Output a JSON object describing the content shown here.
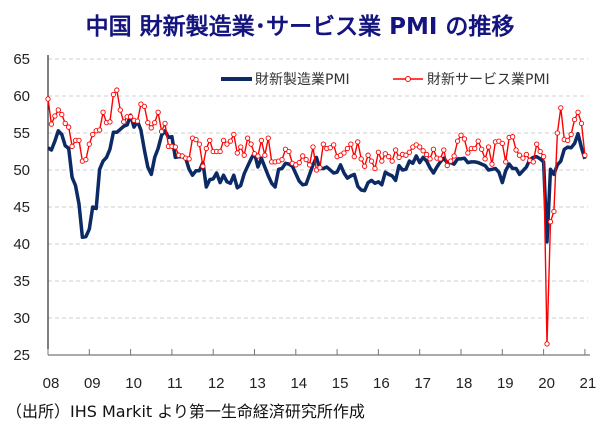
{
  "chart_data": {
    "type": "line",
    "title": "中国  財新製造業･サービス業 PMI の推移",
    "source": "（出所）IHS Markit より第一生命経済研究所作成",
    "xlabel": "",
    "ylabel": "",
    "x_start": "2008-01",
    "x_frequency": "monthly",
    "x_tick_labels": [
      "08",
      "09",
      "10",
      "11",
      "12",
      "13",
      "14",
      "15",
      "16",
      "17",
      "18",
      "19",
      "20",
      "21"
    ],
    "ylim": [
      25,
      65
    ],
    "y_ticks": [
      25,
      30,
      35,
      40,
      45,
      50,
      55,
      60,
      65
    ],
    "grid": "horizontal dashed",
    "legend": "top-right",
    "series": [
      {
        "name": "財新製造業PMI",
        "color": "#0b2a66",
        "marker": "none",
        "values": [
          53.0,
          52.7,
          53.9,
          55.3,
          54.8,
          53.3,
          52.9,
          49.0,
          47.9,
          45.4,
          40.9,
          41.0,
          42.0,
          45.0,
          44.8,
          50.1,
          51.2,
          51.7,
          52.8,
          55.1,
          55.1,
          55.5,
          55.9,
          56.1,
          57.4,
          55.8,
          56.6,
          55.4,
          52.7,
          50.4,
          49.4,
          51.7,
          52.9,
          54.7,
          55.3,
          54.4,
          54.5,
          51.7,
          51.8,
          51.8,
          51.6,
          50.1,
          49.3,
          49.9,
          49.9,
          51.0,
          47.7,
          48.7,
          48.8,
          49.6,
          48.3,
          49.3,
          48.4,
          48.2,
          49.3,
          47.6,
          47.9,
          49.5,
          50.5,
          51.5,
          52.3,
          50.4,
          51.6,
          50.4,
          49.2,
          48.2,
          47.7,
          50.1,
          50.2,
          50.9,
          50.8,
          50.5,
          49.5,
          48.5,
          48.0,
          48.1,
          49.4,
          50.7,
          51.7,
          50.2,
          50.2,
          50.4,
          50.0,
          49.6,
          49.7,
          50.7,
          49.6,
          48.9,
          49.2,
          49.4,
          47.8,
          47.3,
          47.2,
          48.3,
          48.6,
          48.2,
          48.4,
          48.0,
          49.7,
          49.4,
          49.2,
          48.6,
          50.6,
          50.0,
          50.1,
          51.2,
          50.9,
          51.9,
          51.0,
          51.7,
          51.2,
          50.3,
          49.6,
          50.4,
          51.1,
          51.6,
          51.0,
          51.0,
          50.8,
          51.5,
          51.5,
          51.6,
          51.0,
          51.1,
          51.1,
          51.0,
          50.8,
          50.6,
          50.0,
          50.1,
          50.2,
          49.7,
          48.3,
          49.9,
          50.8,
          50.2,
          50.2,
          49.4,
          49.9,
          50.4,
          51.4,
          51.7,
          51.8,
          51.5,
          51.1,
          40.3,
          50.1,
          49.4,
          50.7,
          51.2,
          52.8,
          53.1,
          53.0,
          53.6,
          54.9,
          53.0,
          51.5
        ]
      },
      {
        "name": "財新サービス業PMI",
        "color": "#ff0000",
        "marker": "hollow-circle",
        "values": [
          59.6,
          56.2,
          57.3,
          58.1,
          57.5,
          56.3,
          55.8,
          53.2,
          54.0,
          54.0,
          51.2,
          51.4,
          53.5,
          54.8,
          55.3,
          55.4,
          57.8,
          56.4,
          56.5,
          60.2,
          60.8,
          58.1,
          56.5,
          57.2,
          57.2,
          56.7,
          56.6,
          58.9,
          58.6,
          56.4,
          55.7,
          56.4,
          57.8,
          55.2,
          56.3,
          53.2,
          53.2,
          53.1,
          52.0,
          51.9,
          51.6,
          51.5,
          54.3,
          54.1,
          53.5,
          50.5,
          52.9,
          54.0,
          52.5,
          52.5,
          52.5,
          54.0,
          53.5,
          53.9,
          54.8,
          52.3,
          53.1,
          52.0,
          54.3,
          53.5,
          52.2,
          51.9,
          54.0,
          52.0,
          54.3,
          51.1,
          51.1,
          51.2,
          51.4,
          52.8,
          52.5,
          50.9,
          50.7,
          51.0,
          51.9,
          51.4,
          50.7,
          53.1,
          50.0,
          50.3,
          53.5,
          52.9,
          53.0,
          53.4,
          51.8,
          52.0,
          52.3,
          52.9,
          53.5,
          51.8,
          53.8,
          51.5,
          50.5,
          52.0,
          51.2,
          50.2,
          52.4,
          51.2,
          52.2,
          51.8,
          51.2,
          52.7,
          51.7,
          52.1,
          52.0,
          52.4,
          53.1,
          53.4,
          53.1,
          52.6,
          52.1,
          51.5,
          52.8,
          51.6,
          51.5,
          52.7,
          50.6,
          51.2,
          51.9,
          53.9,
          54.7,
          54.2,
          52.3,
          52.9,
          52.9,
          53.9,
          52.8,
          51.5,
          53.1,
          50.8,
          53.8,
          53.9,
          53.6,
          51.1,
          54.4,
          54.5,
          52.7,
          52.0,
          51.6,
          52.1,
          51.3,
          51.1,
          53.5,
          52.5,
          51.8,
          26.5,
          43.0,
          44.4,
          55.0,
          58.4,
          54.1,
          54.0,
          54.8,
          56.8,
          57.8,
          56.3,
          52.0
        ]
      }
    ]
  }
}
